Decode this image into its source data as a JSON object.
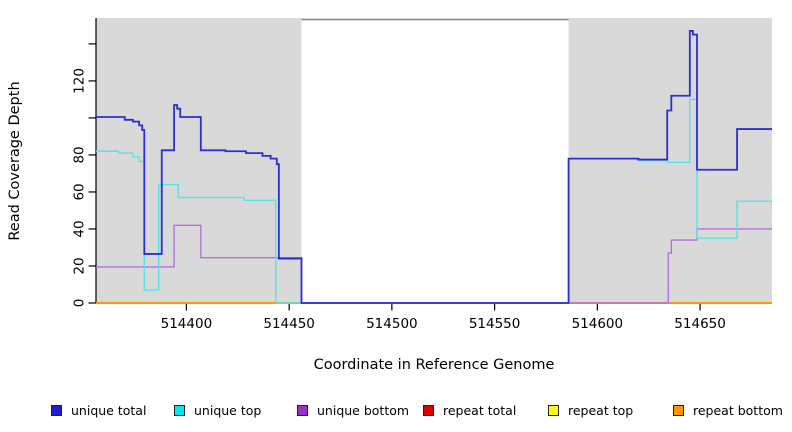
{
  "chart_data": {
    "type": "line",
    "title": "",
    "xlabel": "Coordinate in Reference Genome",
    "ylabel": "Read Coverage Depth",
    "xlim": [
      514356,
      514685
    ],
    "ylim": [
      0,
      154
    ],
    "grid": false,
    "legend_position": "bottom",
    "background_color": "#ffffff",
    "shaded_region_color": "#d9d9d9",
    "gap_top_border_color": "#828282",
    "axis_color": "#000000",
    "x_ticks": [
      {
        "value": 514400,
        "label": "514400"
      },
      {
        "value": 514450,
        "label": "514450"
      },
      {
        "value": 514500,
        "label": "514500"
      },
      {
        "value": 514550,
        "label": "514550"
      },
      {
        "value": 514600,
        "label": "514600"
      },
      {
        "value": 514650,
        "label": "514650"
      }
    ],
    "y_ticks": [
      {
        "value": 0,
        "label": "0"
      },
      {
        "value": 20,
        "label": "20"
      },
      {
        "value": 40,
        "label": "40"
      },
      {
        "value": 60,
        "label": "60"
      },
      {
        "value": 80,
        "label": "80"
      },
      {
        "value": 100,
        "label": ""
      },
      {
        "value": 120,
        "label": "120"
      },
      {
        "value": 140,
        "label": ""
      }
    ],
    "shaded_regions": [
      {
        "x0": 514356,
        "x1": 514456
      },
      {
        "x0": 514586,
        "x1": 514685
      }
    ],
    "gap_top_border": {
      "x0": 514456,
      "x1": 514586
    },
    "series": [
      {
        "name": "unique total",
        "color": "#2d2dd8",
        "legend_color": "#1f1fd0",
        "width": 1.8,
        "points": [
          [
            514356,
            100.5
          ],
          [
            514370,
            100.5
          ],
          [
            514370,
            99
          ],
          [
            514374,
            99
          ],
          [
            514374,
            98
          ],
          [
            514377,
            98
          ],
          [
            514377,
            96
          ],
          [
            514378.5,
            96
          ],
          [
            514378.5,
            93.5
          ],
          [
            514379.5,
            93.5
          ],
          [
            514379.5,
            26.5
          ],
          [
            514388,
            26.5
          ],
          [
            514388,
            82.5
          ],
          [
            514394,
            82.5
          ],
          [
            514394,
            107
          ],
          [
            514395.5,
            107
          ],
          [
            514395.5,
            105
          ],
          [
            514397,
            105
          ],
          [
            514397,
            100.5
          ],
          [
            514407,
            100.5
          ],
          [
            514407,
            82.5
          ],
          [
            514419,
            82.5
          ],
          [
            514419,
            82
          ],
          [
            514429,
            82
          ],
          [
            514429,
            81
          ],
          [
            514437,
            81
          ],
          [
            514437,
            79.5
          ],
          [
            514441,
            79.5
          ],
          [
            514441,
            78
          ],
          [
            514444,
            78
          ],
          [
            514444,
            75
          ],
          [
            514445,
            75
          ],
          [
            514445,
            24
          ],
          [
            514456,
            24
          ],
          [
            514456,
            0
          ],
          [
            514586,
            0
          ],
          [
            514586,
            78
          ],
          [
            514620,
            78
          ],
          [
            514620,
            77.5
          ],
          [
            514634,
            77.5
          ],
          [
            514634,
            104
          ],
          [
            514636,
            104
          ],
          [
            514636,
            112
          ],
          [
            514645,
            112
          ],
          [
            514645,
            147
          ],
          [
            514646.5,
            147
          ],
          [
            514646.5,
            145
          ],
          [
            514648.5,
            145
          ],
          [
            514648.5,
            72
          ],
          [
            514668,
            72
          ],
          [
            514668,
            94
          ],
          [
            514685,
            94
          ]
        ]
      },
      {
        "name": "unique top",
        "color": "#54e4e8",
        "legend_color": "#00e5ee",
        "width": 1.4,
        "points": [
          [
            514356,
            82
          ],
          [
            514367,
            82
          ],
          [
            514367,
            81
          ],
          [
            514374,
            81
          ],
          [
            514374,
            79
          ],
          [
            514377,
            79
          ],
          [
            514377,
            76.5
          ],
          [
            514379.5,
            76.5
          ],
          [
            514379.5,
            7
          ],
          [
            514386.5,
            7
          ],
          [
            514386.5,
            64
          ],
          [
            514396,
            64
          ],
          [
            514396,
            57
          ],
          [
            514428,
            57
          ],
          [
            514428,
            55.5
          ],
          [
            514443.5,
            55.5
          ],
          [
            514443.5,
            0
          ],
          [
            514586,
            0
          ],
          [
            514586,
            78
          ],
          [
            514620,
            78
          ],
          [
            514620,
            77
          ],
          [
            514634,
            77
          ],
          [
            514634,
            76
          ],
          [
            514645,
            76
          ],
          [
            514645,
            110
          ],
          [
            514648.5,
            110
          ],
          [
            514648.5,
            35
          ],
          [
            514668,
            35
          ],
          [
            514668,
            55
          ],
          [
            514685,
            55
          ]
        ]
      },
      {
        "name": "unique bottom",
        "color": "#b273d9",
        "legend_color": "#9932cc",
        "width": 1.4,
        "points": [
          [
            514356,
            19.5
          ],
          [
            514394,
            19.5
          ],
          [
            514394,
            42
          ],
          [
            514407,
            42
          ],
          [
            514407,
            24.5
          ],
          [
            514456,
            24.5
          ],
          [
            514456,
            0
          ],
          [
            514634.5,
            0
          ],
          [
            514634.5,
            27
          ],
          [
            514636,
            27
          ],
          [
            514636,
            34
          ],
          [
            514648.5,
            34
          ],
          [
            514648.5,
            40
          ],
          [
            514685,
            40
          ]
        ]
      },
      {
        "name": "repeat total",
        "color": "#dd0000",
        "legend_color": "#dd0000",
        "width": 1.5,
        "points": [
          [
            514356,
            0
          ],
          [
            514685,
            0
          ]
        ]
      },
      {
        "name": "repeat top",
        "color": "#ffff00",
        "legend_color": "#ffff00",
        "width": 1.5,
        "points": [
          [
            514356,
            0
          ],
          [
            514685,
            0
          ]
        ]
      },
      {
        "name": "repeat bottom",
        "color": "#ff9500",
        "legend_color": "#ff9500",
        "width": 1.8,
        "points": [
          [
            514356,
            0
          ],
          [
            514685,
            0
          ]
        ]
      }
    ]
  }
}
